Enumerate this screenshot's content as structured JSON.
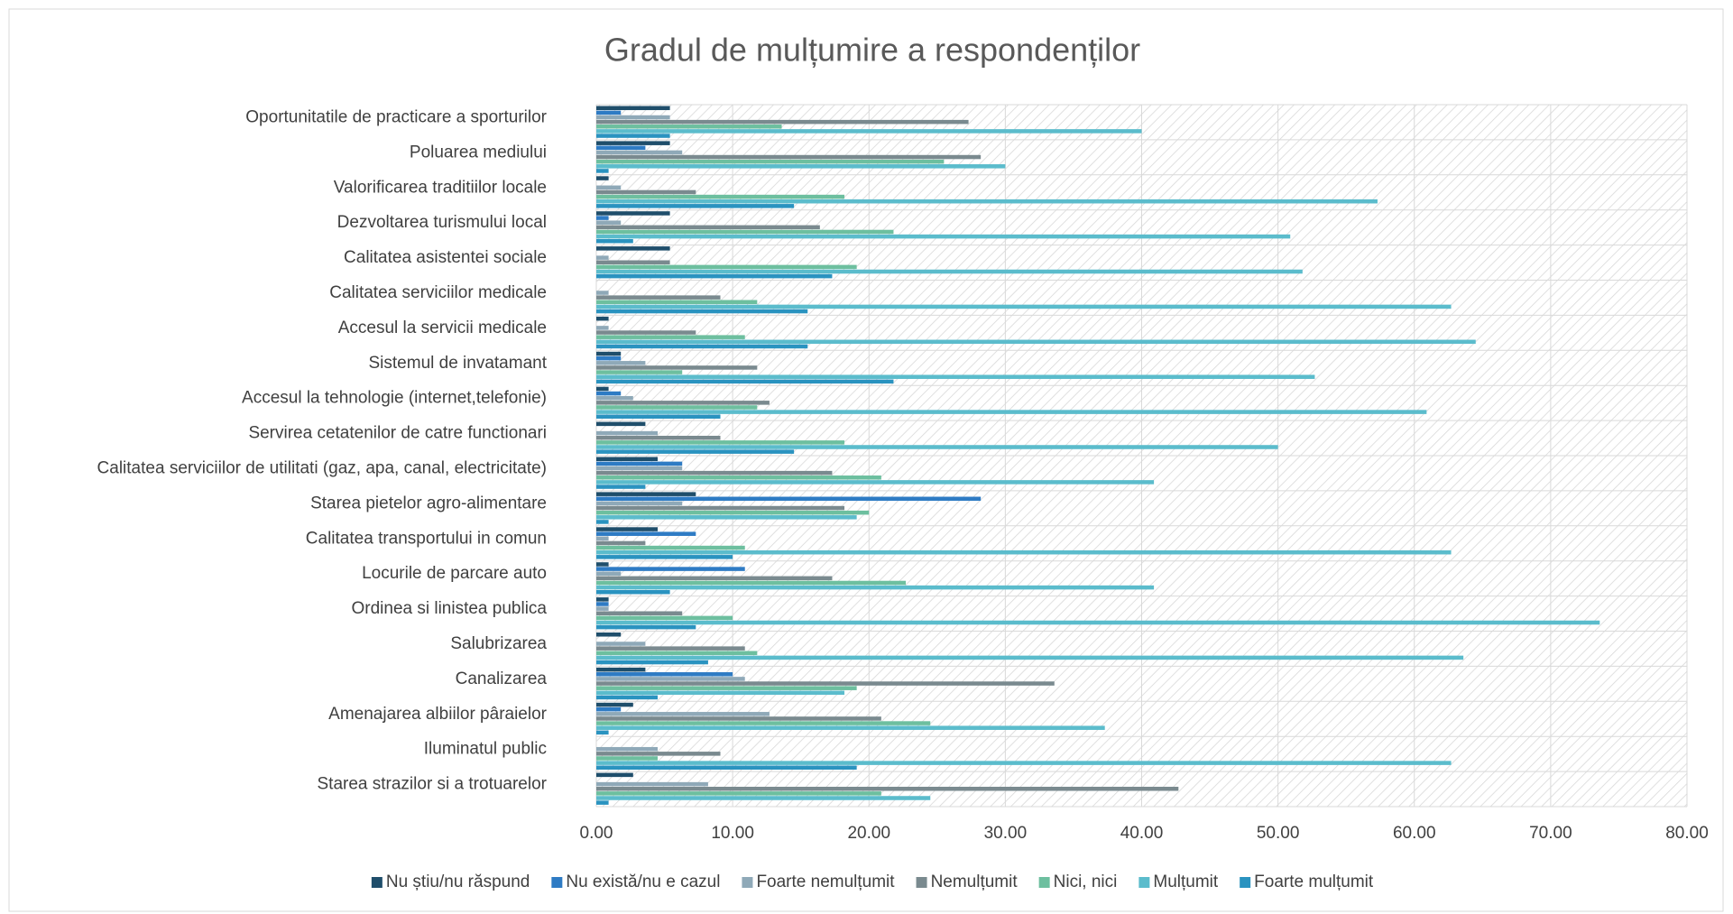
{
  "chart_data": {
    "type": "bar",
    "orientation": "horizontal",
    "title": "Gradul de mulțumire a respondenților",
    "categories": [
      "Oportunitatile de practicare a sporturilor",
      "Poluarea mediului",
      "Valorificarea traditiilor locale",
      "Dezvoltarea turismului local",
      "Calitatea asistentei sociale",
      "Calitatea serviciilor medicale",
      "Accesul la servicii medicale",
      "Sistemul de invatamant",
      "Accesul la tehnologie (internet,telefonie)",
      "Servirea cetatenilor de catre functionari",
      "Calitatea serviciilor de utilitati (gaz, apa, canal, electricitate)",
      "Starea pietelor agro-alimentare",
      "Calitatea transportului in comun",
      "Locurile de parcare auto",
      "Ordinea si linistea publica",
      "Salubrizarea",
      "Canalizarea",
      "Amenajarea albiilor pâraielor",
      "Iluminatul public",
      "Starea strazilor si a trotuarelor"
    ],
    "series": [
      {
        "name": "Nu știu/nu răspund",
        "color": "#1f4e6b",
        "values": [
          5.4,
          5.4,
          0.9,
          5.4,
          5.4,
          0,
          0.9,
          1.8,
          0.9,
          3.6,
          4.5,
          7.3,
          4.5,
          0.9,
          0.9,
          1.8,
          3.6,
          2.7,
          0,
          2.7
        ]
      },
      {
        "name": "Nu există/nu e cazul",
        "color": "#2e7bc4",
        "values": [
          1.8,
          3.6,
          0,
          0.9,
          0,
          0,
          0,
          1.8,
          1.8,
          0,
          6.3,
          28.2,
          7.3,
          10.9,
          0.9,
          0,
          10.0,
          1.8,
          0,
          0
        ]
      },
      {
        "name": "Foarte nemulțumit",
        "color": "#8fa9b8",
        "values": [
          5.4,
          6.3,
          1.8,
          1.8,
          0.9,
          0.9,
          0.9,
          3.6,
          2.7,
          4.5,
          6.3,
          6.3,
          0.9,
          1.8,
          0.9,
          3.6,
          10.9,
          12.7,
          4.5,
          8.2
        ]
      },
      {
        "name": "Nemulțumit",
        "color": "#7a8a8f",
        "values": [
          27.3,
          28.2,
          7.3,
          16.4,
          5.4,
          9.1,
          7.3,
          11.8,
          12.7,
          9.1,
          17.3,
          18.2,
          3.6,
          17.3,
          6.3,
          10.9,
          33.6,
          20.9,
          9.1,
          42.7
        ]
      },
      {
        "name": "Nici, nici",
        "color": "#6dbf9f",
        "values": [
          13.6,
          25.5,
          18.2,
          21.8,
          19.1,
          11.8,
          10.9,
          6.3,
          11.8,
          18.2,
          20.9,
          20.0,
          10.9,
          22.7,
          10.0,
          11.8,
          19.1,
          24.5,
          4.5,
          20.9
        ]
      },
      {
        "name": "Mulțumit",
        "color": "#5bbccc",
        "values": [
          40.0,
          30.0,
          57.3,
          50.9,
          51.8,
          62.7,
          64.5,
          52.7,
          60.9,
          50.0,
          40.9,
          19.1,
          62.7,
          40.9,
          73.6,
          63.6,
          18.2,
          37.3,
          62.7,
          24.5
        ]
      },
      {
        "name": "Foarte mulțumit",
        "color": "#2a93c0",
        "values": [
          5.4,
          0.9,
          14.5,
          2.7,
          17.3,
          15.5,
          15.5,
          21.8,
          9.1,
          14.5,
          3.6,
          0.9,
          10.0,
          5.4,
          7.3,
          8.2,
          4.5,
          0.9,
          19.1,
          0.9
        ]
      }
    ],
    "xlim": [
      0,
      80
    ],
    "xticks": [
      {
        "value": 0,
        "label": "0.00"
      },
      {
        "value": 10,
        "label": "10.00"
      },
      {
        "value": 20,
        "label": "20.00"
      },
      {
        "value": 30,
        "label": "30.00"
      },
      {
        "value": 40,
        "label": "40.00"
      },
      {
        "value": 50,
        "label": "50.00"
      },
      {
        "value": 60,
        "label": "60.00"
      },
      {
        "value": 70,
        "label": "70.00"
      },
      {
        "value": 80,
        "label": "80.00"
      }
    ],
    "grid": true,
    "legend": "bottom"
  }
}
